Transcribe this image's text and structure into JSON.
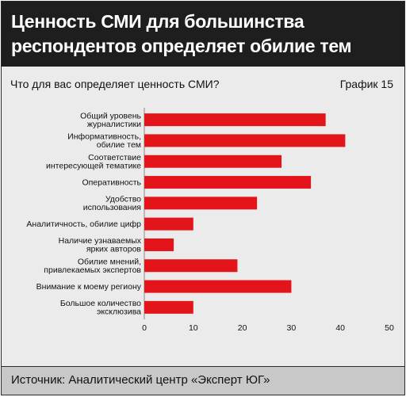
{
  "header": {
    "title_line1": "Ценность СМИ для большинства",
    "title_line2": "респондентов определяет обилие тем"
  },
  "subtitle": "Что для вас определяет ценность СМИ?",
  "chart_number": "График 15",
  "source": "Источник: Аналитический центр «Эксперт ЮГ»",
  "colors": {
    "bar": "#e3151a",
    "header_bg": "#1e1e1e",
    "panel_bg": "#ebebeb"
  },
  "chart_data": {
    "type": "bar",
    "orientation": "horizontal",
    "categories": [
      [
        "Общий уровень",
        "журналистики"
      ],
      [
        "Информативность,",
        "обилие тем"
      ],
      [
        "Соответствие",
        "интересующей тематике"
      ],
      [
        "Оперативность"
      ],
      [
        "Удобство",
        "использования"
      ],
      [
        "Аналитичность, обилие цифр"
      ],
      [
        "Наличие узнаваемых",
        "ярких авторов"
      ],
      [
        "Обилие мнений,",
        "привлекаемых экспертов"
      ],
      [
        "Внимание к моему региону"
      ],
      [
        "Большое количество",
        "эксклюзива"
      ]
    ],
    "values": [
      37,
      41,
      28,
      34,
      23,
      10,
      6,
      19,
      30,
      10
    ],
    "xlim": [
      0,
      50
    ],
    "xticks": [
      0,
      10,
      20,
      30,
      40,
      50
    ],
    "grid": false,
    "legend": "none"
  }
}
